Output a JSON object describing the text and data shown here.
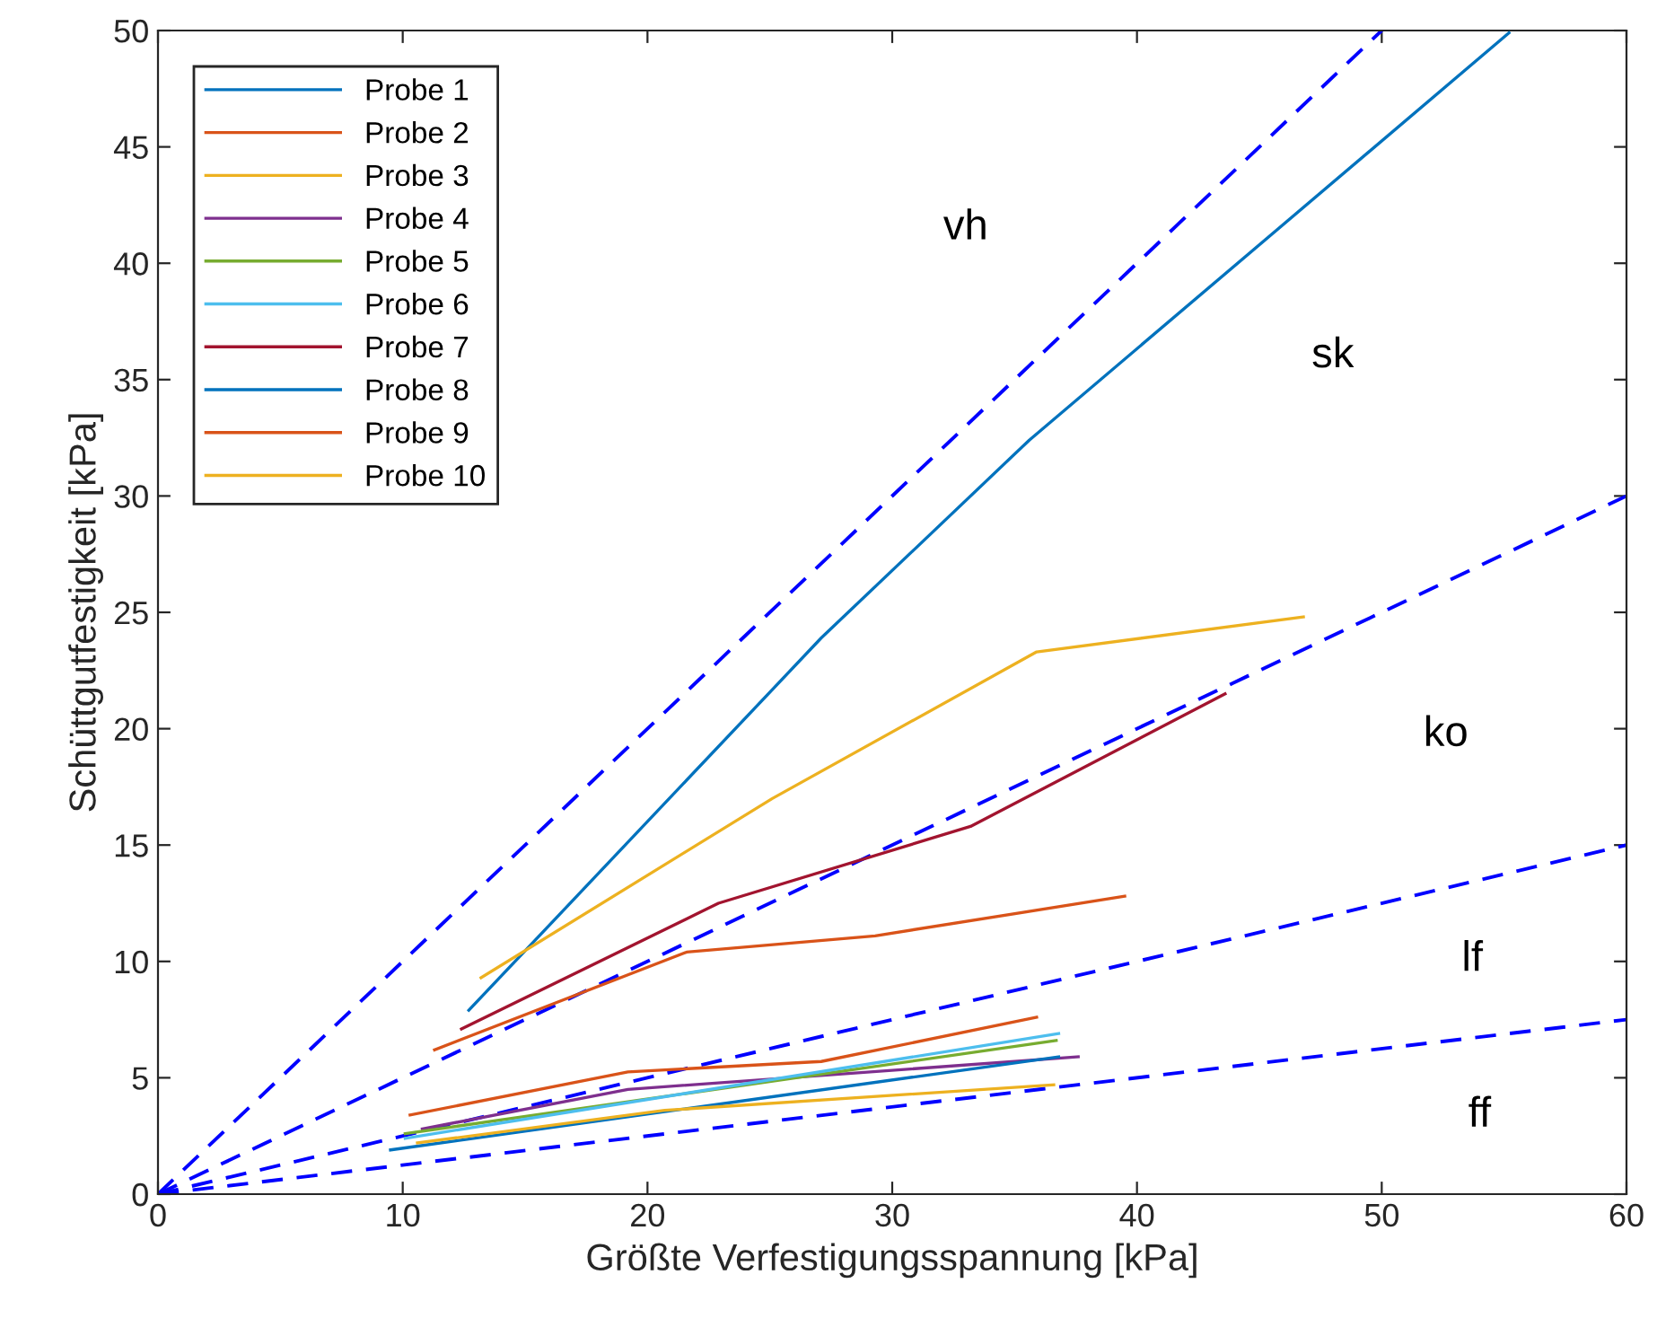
{
  "chart_data": {
    "type": "line",
    "xlabel": "Größte Verfestigungsspannung [kPa]",
    "ylabel": "Schüttgutfestigkeit [kPa]",
    "xlim": [
      0,
      60
    ],
    "ylim": [
      0,
      50
    ],
    "xticks": [
      0,
      10,
      20,
      30,
      40,
      50,
      60
    ],
    "yticks": [
      0,
      5,
      10,
      15,
      20,
      25,
      30,
      35,
      40,
      45,
      50
    ],
    "grid": false,
    "legend": "top left",
    "marker": "none",
    "line_style": "solid",
    "series": [
      {
        "name": "Probe 1",
        "color": "#0072bd",
        "x": [
          12.7,
          27.1,
          35.6,
          55.2
        ],
        "values": [
          7.9,
          23.9,
          32.4,
          49.9
        ]
      },
      {
        "name": "Probe 2",
        "color": "#d95319",
        "x": [
          11.3,
          21.6,
          29.3,
          39.5
        ],
        "values": [
          6.2,
          10.4,
          11.1,
          12.8
        ]
      },
      {
        "name": "Probe 3",
        "color": "#edb120",
        "x": [
          13.2,
          25.1,
          35.9,
          46.8
        ],
        "values": [
          9.3,
          17.0,
          23.3,
          24.8
        ]
      },
      {
        "name": "Probe 4",
        "color": "#7e2f8e",
        "x": [
          10.8,
          19.2,
          37.6
        ],
        "values": [
          2.8,
          4.5,
          5.9
        ]
      },
      {
        "name": "Probe 5",
        "color": "#77ac30",
        "x": [
          10.1,
          36.7
        ],
        "values": [
          2.6,
          6.6
        ]
      },
      {
        "name": "Probe 6",
        "color": "#4dbeee",
        "x": [
          10.1,
          36.8
        ],
        "values": [
          2.4,
          6.9
        ]
      },
      {
        "name": "Probe 7",
        "color": "#a2142f",
        "x": [
          12.4,
          22.9,
          33.2,
          43.6
        ],
        "values": [
          7.1,
          12.5,
          15.8,
          21.5
        ]
      },
      {
        "name": "Probe 8",
        "color": "#0072bd",
        "x": [
          9.5,
          36.8
        ],
        "values": [
          1.9,
          5.9
        ]
      },
      {
        "name": "Probe 9",
        "color": "#d95319",
        "x": [
          10.3,
          19.2,
          27.1,
          35.9
        ],
        "values": [
          3.4,
          5.25,
          5.7,
          7.6
        ]
      },
      {
        "name": "Probe 10",
        "color": "#edb120",
        "x": [
          10.6,
          20.7,
          36.6
        ],
        "values": [
          2.2,
          3.6,
          4.7
        ]
      },
      {
        "type": "line",
        "line_style": "dashed",
        "color": "#0000ff",
        "x": [
          0,
          50
        ],
        "values": [
          0,
          50
        ]
      },
      {
        "type": "line",
        "line_style": "dashed",
        "color": "#0000ff",
        "x": [
          0,
          60
        ],
        "values": [
          0,
          30
        ]
      },
      {
        "type": "line",
        "line_style": "dashed",
        "color": "#0000ff",
        "x": [
          0,
          60
        ],
        "values": [
          0,
          15
        ]
      },
      {
        "type": "line",
        "line_style": "dashed",
        "color": "#0000ff",
        "x": [
          0,
          60
        ],
        "values": [
          0,
          7.5
        ]
      }
    ],
    "annotations": [
      "vh",
      "sk",
      "ko",
      "lf",
      "ff"
    ]
  }
}
